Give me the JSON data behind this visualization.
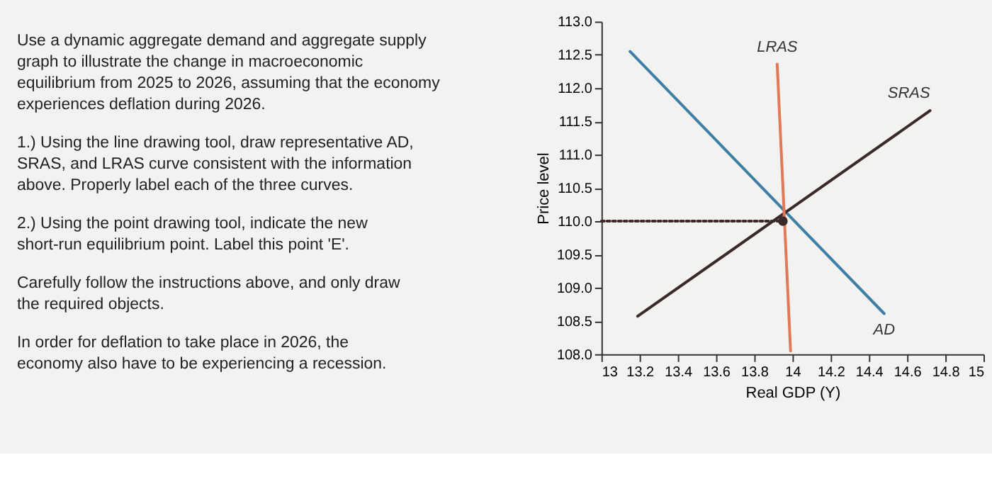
{
  "chart_data": [
    {
      "type": "other",
      "annotations": [
        "Use a dynamic aggregate demand and aggregate supply graph to illustrate the change in macroeconomic equilibrium from 2025 to 2026, assuming that the economy experiences deflation during 2026.",
        "1.) Using the line drawing tool, draw representative AD, SRAS, and LRAS curve consistent with the information above. Properly label each of the three curves.",
        "2.) Using the point drawing tool, indicate the new short-run equilibrium point. Label this point 'E'.",
        "Carefully follow the instructions above, and only draw the required objects.",
        "In order for deflation to take place in 2026, the economy also have to be experiencing a recession."
      ]
    },
    {
      "type": "line",
      "xlabel": "Real GDP (Y)",
      "ylabel": "Price level",
      "xlim": [
        13,
        15
      ],
      "xticks": [
        13,
        13.2,
        13.4,
        13.6,
        13.8,
        14,
        14.2,
        14.4,
        14.6,
        14.8,
        15
      ],
      "ylim": [
        108,
        113
      ],
      "yticks": [
        {
          "value": 108,
          "label": "108.0"
        },
        {
          "value": 108.5,
          "label": "108.5"
        },
        {
          "value": 109,
          "label": "109.0"
        },
        {
          "value": 109.5,
          "label": "109.5"
        },
        {
          "value": 110,
          "label": "110.0"
        },
        {
          "value": 110.5,
          "label": "110.5"
        },
        {
          "value": 111,
          "label": "111.0"
        },
        {
          "value": 111.5,
          "label": "111.5"
        },
        {
          "value": 112,
          "label": "112.0"
        },
        {
          "value": 112.5,
          "label": "112.5"
        },
        {
          "value": 113,
          "label": "113.0"
        }
      ],
      "grid": false,
      "marker": "none",
      "series": [
        {
          "name": "AD",
          "color": "#3f7fa6",
          "x": [
            13.15,
            14.48
          ],
          "values": [
            112.55,
            108.61
          ]
        },
        {
          "name": "SRAS",
          "color": "#3a2a2a",
          "x": [
            13.19,
            14.72
          ],
          "values": [
            108.57,
            111.66
          ]
        },
        {
          "name": "LRAS",
          "color": "#e0785a",
          "x": [
            13.99,
            13.92
          ],
          "values": [
            108.05,
            112.36
          ]
        },
        {
          "color": "#3a2a2a",
          "x": [
            13,
            13.95
          ],
          "values": [
            110,
            110
          ],
          "line_style": "dotted"
        },
        {
          "type": "scatter",
          "marker": "circle",
          "color": "#3a2a2a",
          "x": [
            13.95
          ],
          "values": [
            110
          ]
        }
      ]
    }
  ]
}
